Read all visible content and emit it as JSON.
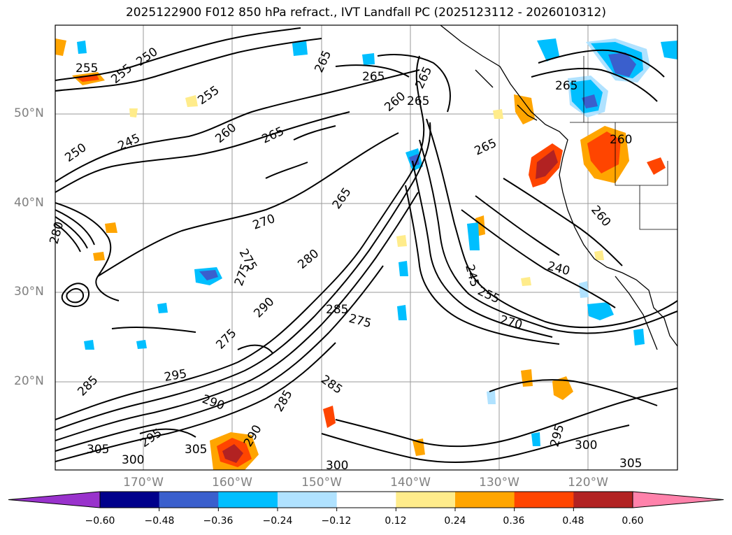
{
  "title": "2025122900 F012 850 hPa refract., IVT Landfall PC (2025123112 - 2026010312)",
  "lat_labels": [
    "50°N",
    "40°N",
    "30°N",
    "20°N"
  ],
  "lon_labels": [
    "170°W",
    "160°W",
    "150°W",
    "140°W",
    "130°W",
    "120°W"
  ],
  "contour_labels": [
    "255",
    "255",
    "250",
    "265",
    "265",
    "265",
    "255",
    "260",
    "265",
    "265",
    "260",
    "245",
    "250",
    "260",
    "265",
    "265",
    "260",
    "280",
    "270",
    "275",
    "275",
    "280",
    "265",
    "245",
    "240",
    "255",
    "270",
    "285",
    "275",
    "290",
    "275",
    "285",
    "295",
    "285",
    "290",
    "285",
    "295",
    "305",
    "300",
    "290",
    "295",
    "300",
    "305",
    "300",
    "305"
  ],
  "colorbar": {
    "ticks": [
      "−0.60",
      "−0.48",
      "−0.36",
      "−0.24",
      "−0.12",
      "0.12",
      "0.24",
      "0.36",
      "0.48",
      "0.60"
    ],
    "colors": [
      "#9932cc",
      "#00008b",
      "#3a5fcd",
      "#00bfff",
      "#b0e2ff",
      "#ffffff",
      "#ffec8b",
      "#ffa500",
      "#ff4500",
      "#b22222",
      "#ff82ab"
    ]
  }
}
